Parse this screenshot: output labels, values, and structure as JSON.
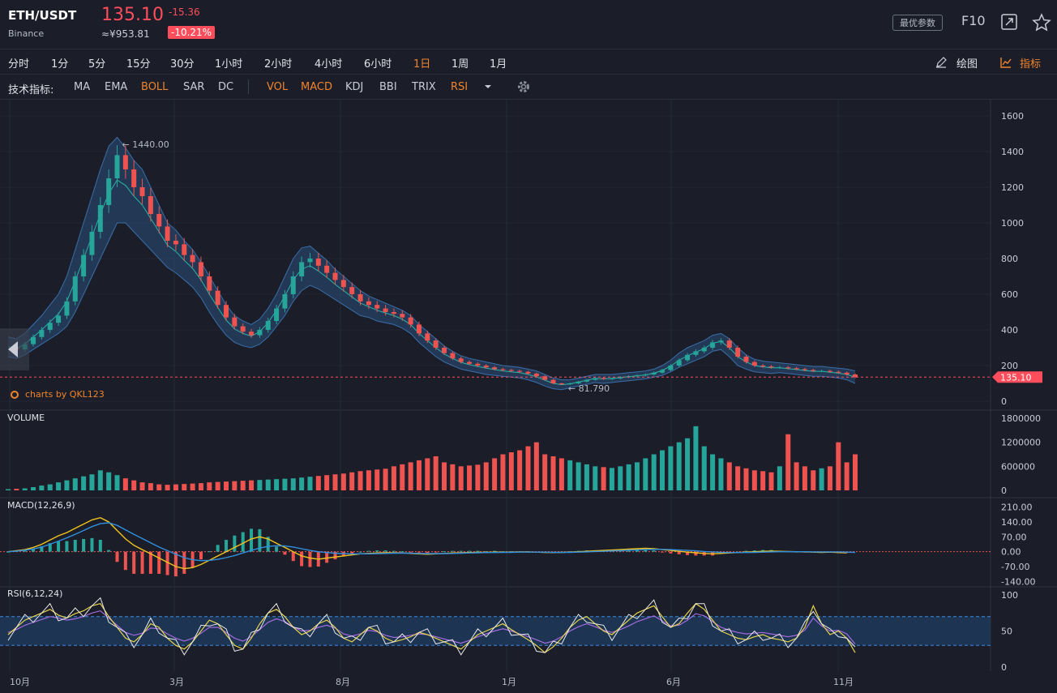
{
  "header": {
    "symbol": "ETH/USDT",
    "exchange": "Binance",
    "price": "135.10",
    "change": "-15.36",
    "cny": "≈¥953.81",
    "change_pct": "-10.21%",
    "param_button": "最优参数",
    "f10": "F10",
    "icons": [
      "fullscreen-icon",
      "star-icon"
    ]
  },
  "timeframes": {
    "items": [
      "分时",
      "1分",
      "5分",
      "15分",
      "30分",
      "1小时",
      "2小时",
      "4小时",
      "6小时",
      "1日",
      "1周",
      "1月"
    ],
    "active": "1日"
  },
  "tools": {
    "draw_label": "绘图",
    "indicator_label": "指标"
  },
  "indicators": {
    "title": "技术指标:",
    "main": [
      "MA",
      "EMA",
      "BOLL",
      "SAR",
      "DC"
    ],
    "sub": [
      "VOL",
      "MACD",
      "KDJ",
      "BBI",
      "TRIX",
      "RSI"
    ],
    "active": [
      "BOLL",
      "VOL",
      "MACD",
      "RSI"
    ]
  },
  "colors": {
    "up": "#26a69a",
    "down": "#ef5350",
    "accent": "#f0842c",
    "price": "#ff4d5b",
    "band": "#2a4f7a"
  },
  "chart_data": {
    "type": "line",
    "brand": "charts by QKL123",
    "price_axis": {
      "ticks": [
        "1600",
        "1400",
        "1200",
        "1000",
        "800",
        "600",
        "400",
        "200",
        "0"
      ],
      "ylim": [
        0,
        1600
      ]
    },
    "x_ticks": [
      "10月",
      "3月",
      "8月",
      "1月",
      "6月",
      "11月"
    ],
    "last_price": "135.10",
    "high_label": "1440.00",
    "low_label": "81.790",
    "close": [
      300,
      290,
      320,
      360,
      400,
      440,
      480,
      560,
      700,
      820,
      950,
      1100,
      1250,
      1380,
      1300,
      1200,
      1150,
      1050,
      980,
      900,
      880,
      820,
      780,
      700,
      620,
      540,
      470,
      420,
      390,
      370,
      400,
      450,
      520,
      600,
      700,
      780,
      800,
      760,
      720,
      680,
      640,
      600,
      560,
      540,
      520,
      500,
      490,
      470,
      430,
      380,
      340,
      300,
      270,
      240,
      220,
      210,
      200,
      190,
      180,
      175,
      170,
      165,
      155,
      140,
      120,
      100,
      95,
      100,
      110,
      120,
      130,
      125,
      128,
      135,
      140,
      145,
      150,
      160,
      175,
      200,
      230,
      260,
      280,
      300,
      330,
      340,
      300,
      250,
      220,
      200,
      195,
      190,
      190,
      185,
      180,
      175,
      170,
      170,
      165,
      160,
      150,
      135
    ],
    "upper": [
      360,
      350,
      380,
      430,
      480,
      540,
      600,
      700,
      850,
      1000,
      1150,
      1300,
      1430,
      1480,
      1420,
      1350,
      1300,
      1200,
      1100,
      1000,
      960,
      900,
      850,
      780,
      700,
      620,
      540,
      480,
      450,
      430,
      460,
      520,
      600,
      700,
      800,
      860,
      870,
      830,
      790,
      740,
      700,
      660,
      620,
      590,
      570,
      550,
      530,
      510,
      480,
      430,
      390,
      350,
      310,
      280,
      255,
      240,
      230,
      220,
      210,
      200,
      195,
      190,
      180,
      170,
      150,
      130,
      120,
      120,
      130,
      140,
      150,
      150,
      150,
      155,
      160,
      165,
      170,
      180,
      200,
      230,
      270,
      300,
      320,
      340,
      370,
      380,
      350,
      300,
      260,
      235,
      225,
      220,
      215,
      210,
      205,
      200,
      195,
      195,
      190,
      185,
      180,
      170
    ],
    "lower": [
      250,
      240,
      260,
      290,
      320,
      350,
      380,
      420,
      500,
      600,
      700,
      800,
      900,
      1000,
      1000,
      950,
      900,
      850,
      800,
      750,
      720,
      680,
      640,
      580,
      500,
      430,
      370,
      330,
      310,
      300,
      320,
      360,
      420,
      480,
      560,
      620,
      650,
      630,
      600,
      570,
      540,
      510,
      480,
      470,
      450,
      440,
      430,
      410,
      380,
      330,
      290,
      250,
      220,
      200,
      180,
      170,
      160,
      150,
      145,
      140,
      135,
      130,
      120,
      105,
      85,
      70,
      65,
      75,
      85,
      95,
      105,
      100,
      105,
      110,
      115,
      120,
      125,
      135,
      145,
      165,
      190,
      210,
      230,
      250,
      280,
      290,
      250,
      200,
      180,
      165,
      160,
      155,
      160,
      155,
      150,
      145,
      140,
      140,
      135,
      130,
      120,
      100
    ],
    "volume_axis": {
      "ticks": [
        "1800000",
        "1200000",
        "600000",
        "0"
      ],
      "ylim": [
        0,
        1800000
      ]
    },
    "volume": [
      30000,
      40000,
      50000,
      80000,
      120000,
      150000,
      200000,
      250000,
      300000,
      350000,
      400000,
      500000,
      450000,
      380000,
      300000,
      250000,
      200000,
      180000,
      150000,
      140000,
      150000,
      160000,
      170000,
      180000,
      200000,
      210000,
      220000,
      230000,
      240000,
      250000,
      260000,
      270000,
      280000,
      290000,
      300000,
      320000,
      340000,
      360000,
      380000,
      400000,
      420000,
      450000,
      480000,
      500000,
      520000,
      540000,
      600000,
      650000,
      700000,
      750000,
      800000,
      850000,
      700000,
      650000,
      600000,
      620000,
      640000,
      700000,
      800000,
      900000,
      950000,
      1000000,
      1100000,
      1200000,
      900000,
      850000,
      800000,
      750000,
      700000,
      650000,
      600000,
      580000,
      560000,
      600000,
      650000,
      700000,
      800000,
      900000,
      1000000,
      1100000,
      1200000,
      1300000,
      1600000,
      1100000,
      900000,
      800000,
      700000,
      600000,
      550000,
      500000,
      480000,
      450000,
      600000,
      1400000,
      700000,
      600000,
      500000,
      550000,
      600000,
      1200000,
      700000,
      900000
    ],
    "macd_axis": {
      "ticks": [
        "210.00",
        "140.00",
        "70.00",
        "0.00",
        "-70.00",
        "-140.00"
      ],
      "ylim": [
        -150,
        220
      ]
    },
    "macd_label": "MACD(12,26,9)",
    "dif": [
      0,
      5,
      10,
      20,
      35,
      55,
      75,
      90,
      110,
      130,
      150,
      160,
      140,
      100,
      60,
      30,
      10,
      -10,
      -30,
      -50,
      -70,
      -80,
      -75,
      -60,
      -40,
      -20,
      0,
      20,
      40,
      60,
      70,
      60,
      40,
      20,
      0,
      -20,
      -30,
      -35,
      -30,
      -25,
      -20,
      -15,
      -10,
      -8,
      -6,
      -5,
      -5,
      -6,
      -8,
      -10,
      -12,
      -10,
      -8,
      -6,
      -5,
      -4,
      -3,
      -3,
      -2,
      -2,
      -2,
      -1,
      -1,
      -2,
      -3,
      -4,
      -3,
      -2,
      0,
      2,
      4,
      6,
      8,
      10,
      12,
      14,
      16,
      14,
      10,
      6,
      2,
      -2,
      -5,
      -8,
      -10,
      -8,
      -6,
      -4,
      -2,
      0,
      2,
      3,
      2,
      1,
      0,
      -1,
      -2,
      -3,
      -2,
      -4,
      -5
    ],
    "dea": [
      0,
      3,
      7,
      13,
      22,
      35,
      50,
      65,
      82,
      100,
      118,
      132,
      136,
      124,
      103,
      82,
      62,
      42,
      22,
      5,
      -12,
      -28,
      -38,
      -42,
      -41,
      -36,
      -28,
      -18,
      -6,
      6,
      17,
      25,
      28,
      27,
      22,
      14,
      6,
      0,
      -4,
      -7,
      -9,
      -10,
      -10,
      -10,
      -9,
      -8,
      -7,
      -7,
      -7,
      -8,
      -9,
      -9,
      -9,
      -8,
      -7,
      -6,
      -5,
      -4,
      -4,
      -3,
      -3,
      -2,
      -2,
      -2,
      -2,
      -3,
      -3,
      -3,
      -2,
      -1,
      1,
      2,
      4,
      5,
      7,
      8,
      10,
      11,
      11,
      10,
      8,
      6,
      4,
      1,
      -1,
      -3,
      -4,
      -4,
      -4,
      -3,
      -2,
      -1,
      0,
      0,
      0,
      0,
      -1,
      -1,
      -1,
      -1,
      -2,
      -3
    ],
    "rsi_label": "RSI(6,12,24)",
    "rsi_axis": {
      "ticks": [
        "100",
        "50",
        "0"
      ],
      "ylim": [
        0,
        100
      ],
      "band": [
        30,
        70
      ]
    },
    "rsi6": [
      45,
      55,
      65,
      70,
      75,
      80,
      72,
      68,
      74,
      78,
      85,
      88,
      70,
      55,
      40,
      35,
      45,
      60,
      55,
      40,
      30,
      25,
      35,
      50,
      65,
      60,
      45,
      30,
      25,
      40,
      60,
      75,
      80,
      70,
      55,
      45,
      50,
      60,
      65,
      55,
      40,
      35,
      45,
      55,
      50,
      40,
      35,
      38,
      42,
      48,
      45,
      40,
      35,
      30,
      25,
      35,
      45,
      50,
      55,
      60,
      52,
      45,
      38,
      30,
      20,
      28,
      40,
      55,
      65,
      70,
      60,
      50,
      45,
      55,
      65,
      75,
      80,
      85,
      70,
      55,
      60,
      75,
      88,
      80,
      65,
      50,
      45,
      40,
      38,
      42,
      45,
      40,
      38,
      35,
      40,
      55,
      85,
      60,
      45,
      50,
      40,
      20
    ],
    "rsi12": [
      48,
      52,
      58,
      62,
      66,
      70,
      68,
      65,
      67,
      70,
      75,
      78,
      68,
      58,
      48,
      44,
      47,
      54,
      53,
      46,
      40,
      36,
      40,
      47,
      55,
      55,
      48,
      40,
      36,
      42,
      52,
      62,
      67,
      63,
      56,
      50,
      51,
      55,
      58,
      54,
      46,
      43,
      46,
      51,
      49,
      44,
      41,
      42,
      44,
      46,
      45,
      42,
      39,
      36,
      33,
      37,
      42,
      46,
      50,
      53,
      50,
      46,
      42,
      38,
      33,
      36,
      42,
      50,
      56,
      60,
      56,
      51,
      48,
      52,
      57,
      63,
      67,
      71,
      64,
      57,
      58,
      65,
      74,
      71,
      63,
      55,
      51,
      48,
      46,
      47,
      48,
      46,
      44,
      42,
      44,
      51,
      68,
      57,
      50,
      51,
      46,
      32
    ]
  }
}
